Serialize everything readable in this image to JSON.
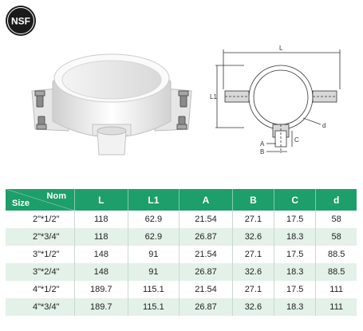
{
  "logo": {
    "text": "NSF"
  },
  "drawing_labels": {
    "L": "L",
    "L1": "L1",
    "A": "A",
    "B": "B",
    "C": "C",
    "d": "d"
  },
  "table": {
    "corner_top": "Nom",
    "corner_bottom": "Size",
    "headers": [
      "L",
      "L1",
      "A",
      "B",
      "C",
      "d"
    ],
    "rows": [
      {
        "size": "2\"*1/2\"",
        "L": "118",
        "L1": "62.9",
        "A": "21.54",
        "B": "27.1",
        "C": "17.5",
        "d": "58"
      },
      {
        "size": "2\"*3/4\"",
        "L": "118",
        "L1": "62.9",
        "A": "26.87",
        "B": "32.6",
        "C": "18.3",
        "d": "58"
      },
      {
        "size": "3\"*1/2\"",
        "L": "148",
        "L1": "91",
        "A": "21.54",
        "B": "27.1",
        "C": "17.5",
        "d": "88.5"
      },
      {
        "size": "3\"*2/4\"",
        "L": "148",
        "L1": "91",
        "A": "26.87",
        "B": "32.6",
        "C": "18.3",
        "d": "88.5"
      },
      {
        "size": "4\"*1/2\"",
        "L": "189.7",
        "L1": "115.1",
        "A": "21.54",
        "B": "27.1",
        "C": "17.5",
        "d": "111"
      },
      {
        "size": "4\"*3/4\"",
        "L": "189.7",
        "L1": "115.1",
        "A": "26.87",
        "B": "32.6",
        "C": "18.3",
        "d": "111"
      }
    ]
  },
  "colors": {
    "header_green": "#1e9e6a",
    "row_tint": "#e3f1e9",
    "logo_black": "#1a1a1a"
  }
}
